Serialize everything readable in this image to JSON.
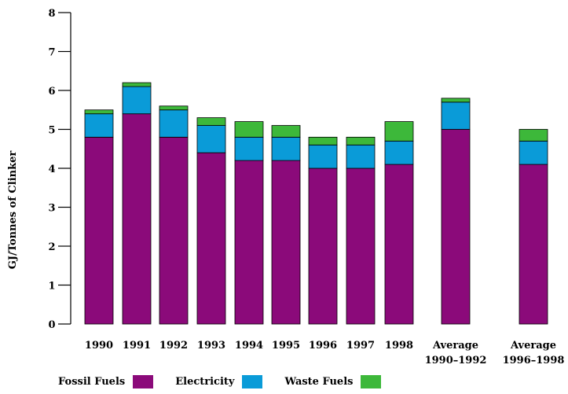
{
  "chart_data": {
    "type": "bar",
    "stacked": true,
    "categories": [
      "1990",
      "1991",
      "1992",
      "1993",
      "1994",
      "1995",
      "1996",
      "1997",
      "1998",
      "Average 1990–1992",
      "Average 1996–1998"
    ],
    "category_lines": [
      [
        "1990"
      ],
      [
        "1991"
      ],
      [
        "1992"
      ],
      [
        "1993"
      ],
      [
        "1994"
      ],
      [
        "1995"
      ],
      [
        "1996"
      ],
      [
        "1997"
      ],
      [
        "1998"
      ],
      [
        "Average",
        "1990–1992"
      ],
      [
        "Average",
        "1996–1998"
      ]
    ],
    "series": [
      {
        "name": "Fossil Fuels",
        "color": "#8B0A7A",
        "values": [
          4.8,
          5.4,
          4.8,
          4.4,
          4.2,
          4.2,
          4.0,
          4.0,
          4.1,
          5.0,
          4.1
        ]
      },
      {
        "name": "Electricity",
        "color": "#0A9BD8",
        "values": [
          0.6,
          0.7,
          0.7,
          0.7,
          0.6,
          0.6,
          0.6,
          0.6,
          0.6,
          0.7,
          0.6
        ]
      },
      {
        "name": "Waste Fuels",
        "color": "#3DB83A",
        "values": [
          0.1,
          0.1,
          0.1,
          0.2,
          0.4,
          0.3,
          0.2,
          0.2,
          0.5,
          0.1,
          0.3
        ]
      }
    ],
    "ylabel": "GJ/Tonnes of Clinker",
    "xlabel": "",
    "ylim": [
      0,
      8
    ],
    "yticks": [
      "0",
      "1",
      "2",
      "3",
      "4",
      "5",
      "6",
      "7",
      "8"
    ],
    "grid": false,
    "legend_position": "bottom-left"
  }
}
